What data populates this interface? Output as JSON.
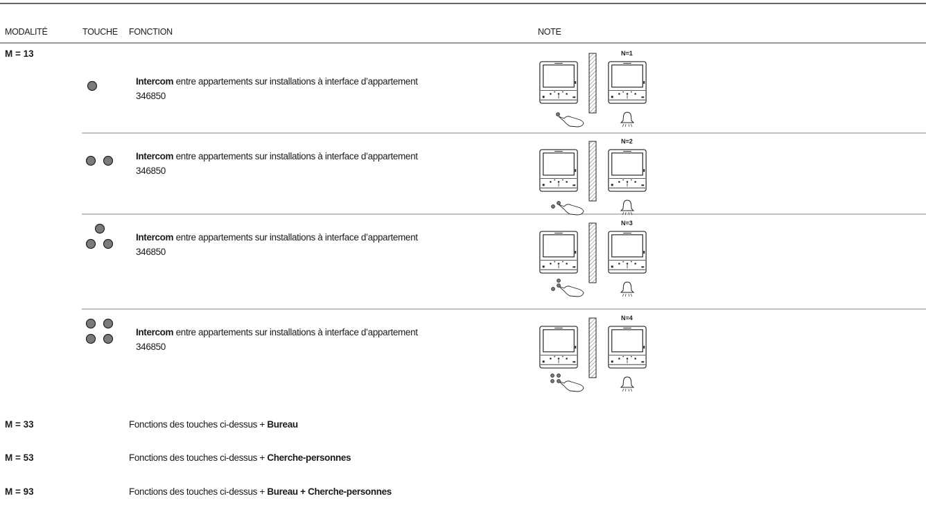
{
  "header": {
    "columns": [
      "MODALITÉ",
      "TOUCHE",
      "FONCTION",
      "NOTE"
    ]
  },
  "sections": [
    {
      "mode": "M = 13",
      "rows": [
        {
          "function": {
            "bold": "Intercom",
            "text": "entre appartements sur installations à interface d’appartement",
            "code": "346850"
          },
          "note": "N=1"
        },
        {
          "function": {
            "bold": "Intercom",
            "text": "entre appartements sur installations à interface d’appartement",
            "code": "346850"
          },
          "note": "N=2"
        },
        {
          "function": {
            "bold": "Intercom",
            "text": "entre appartements sur installations à interface d’appartement",
            "code": "346850"
          },
          "note": "N=3"
        },
        {
          "function": {
            "bold": "Intercom",
            "text": "entre appartements sur installations à interface d’appartement",
            "code": "346850"
          },
          "note": "N=4"
        }
      ]
    },
    {
      "mode": "M = 33",
      "function": {
        "text": "Fonctions des touches ci-dessus +",
        "bold": "Bureau"
      }
    },
    {
      "mode": "M = 53",
      "function": {
        "text": "Fonctions des touches ci-dessus +",
        "bold": "Cherche-personnes"
      }
    },
    {
      "mode": "M = 93",
      "function": {
        "text": "Fonctions des touches ci-dessus +",
        "bold": "Bureau + Cherche-personnes"
      }
    }
  ]
}
